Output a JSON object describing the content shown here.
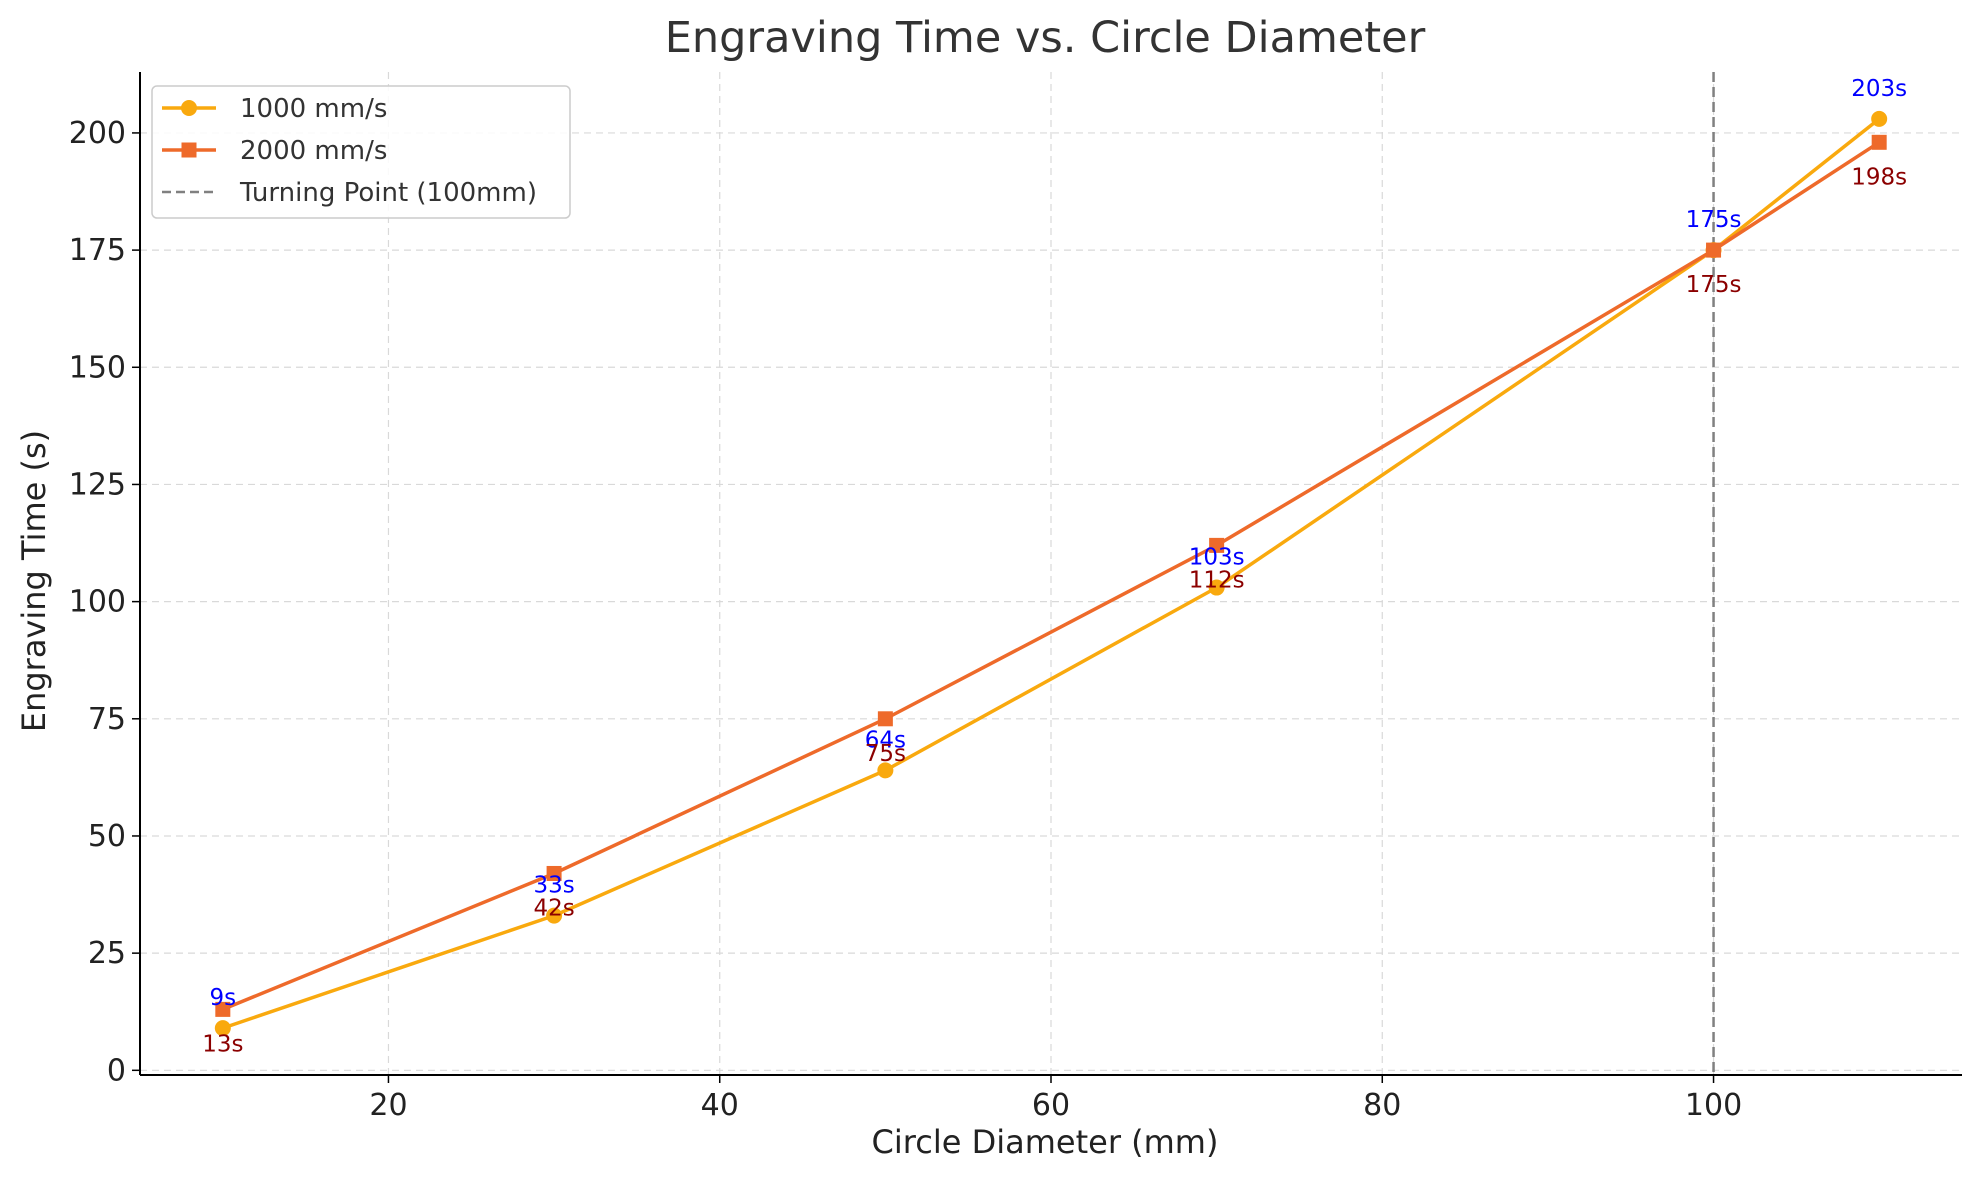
{
  "chart_data": {
    "type": "line",
    "title": "Engraving Time vs. Circle Diameter",
    "xlabel": "Circle Diameter (mm)",
    "ylabel": "Engraving Time (s)",
    "xlim": [
      5,
      115
    ],
    "ylim": [
      -1,
      213
    ],
    "x_ticks": [
      20,
      40,
      60,
      80,
      100
    ],
    "y_ticks": [
      0,
      25,
      50,
      75,
      100,
      125,
      150,
      175,
      200
    ],
    "grid": true,
    "legend_position": "top-left",
    "x": [
      10,
      30,
      50,
      70,
      100,
      110
    ],
    "series": [
      {
        "name": "1000 mm/s",
        "color": "#f9a90e",
        "marker": "circle",
        "values": [
          9,
          33,
          64,
          103,
          175,
          203
        ],
        "labels": [
          "9s",
          "33s",
          "64s",
          "103s",
          "175s",
          "203s"
        ],
        "label_color": "#0000ff",
        "label_side": "above"
      },
      {
        "name": "2000 mm/s",
        "color": "#ee6a2a",
        "marker": "square",
        "values": [
          13,
          42,
          75,
          112,
          175,
          198
        ],
        "labels": [
          "13s",
          "42s",
          "75s",
          "112s",
          "175s",
          "198s"
        ],
        "label_color": "#8b0000",
        "label_side": "below"
      }
    ],
    "reference_line": {
      "name": "Turning Point (100mm)",
      "x": 100,
      "color": "#808080",
      "style": "dashed"
    }
  }
}
